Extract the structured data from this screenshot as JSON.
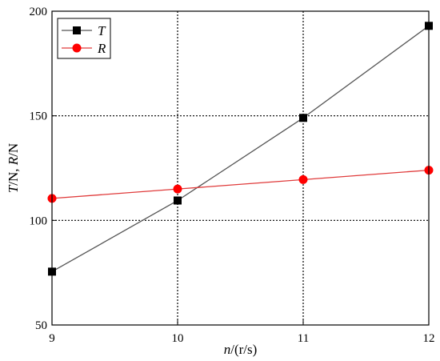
{
  "chart_data": {
    "type": "line",
    "x": [
      9,
      10,
      11,
      12
    ],
    "xticks": [
      9,
      10,
      11,
      12
    ],
    "yticks": [
      50,
      100,
      150,
      200
    ],
    "xlim": [
      9,
      12
    ],
    "ylim": [
      50,
      200
    ],
    "xlabel": {
      "var": "n",
      "unit": "/(r/s)"
    },
    "ylabel": {
      "v1": "T",
      "u1": "/N, ",
      "v2": "R",
      "u2": "/N"
    },
    "grid": true,
    "legend": "top-left",
    "series": [
      {
        "name": "T",
        "marker": "square",
        "color": "#000000",
        "line_color": "#555555",
        "values": [
          75.5,
          109.5,
          149,
          193
        ]
      },
      {
        "name": "R",
        "marker": "circle",
        "color": "#ff0000",
        "line_color": "#e03c3c",
        "values": [
          110.5,
          115,
          119.5,
          124
        ]
      }
    ]
  }
}
